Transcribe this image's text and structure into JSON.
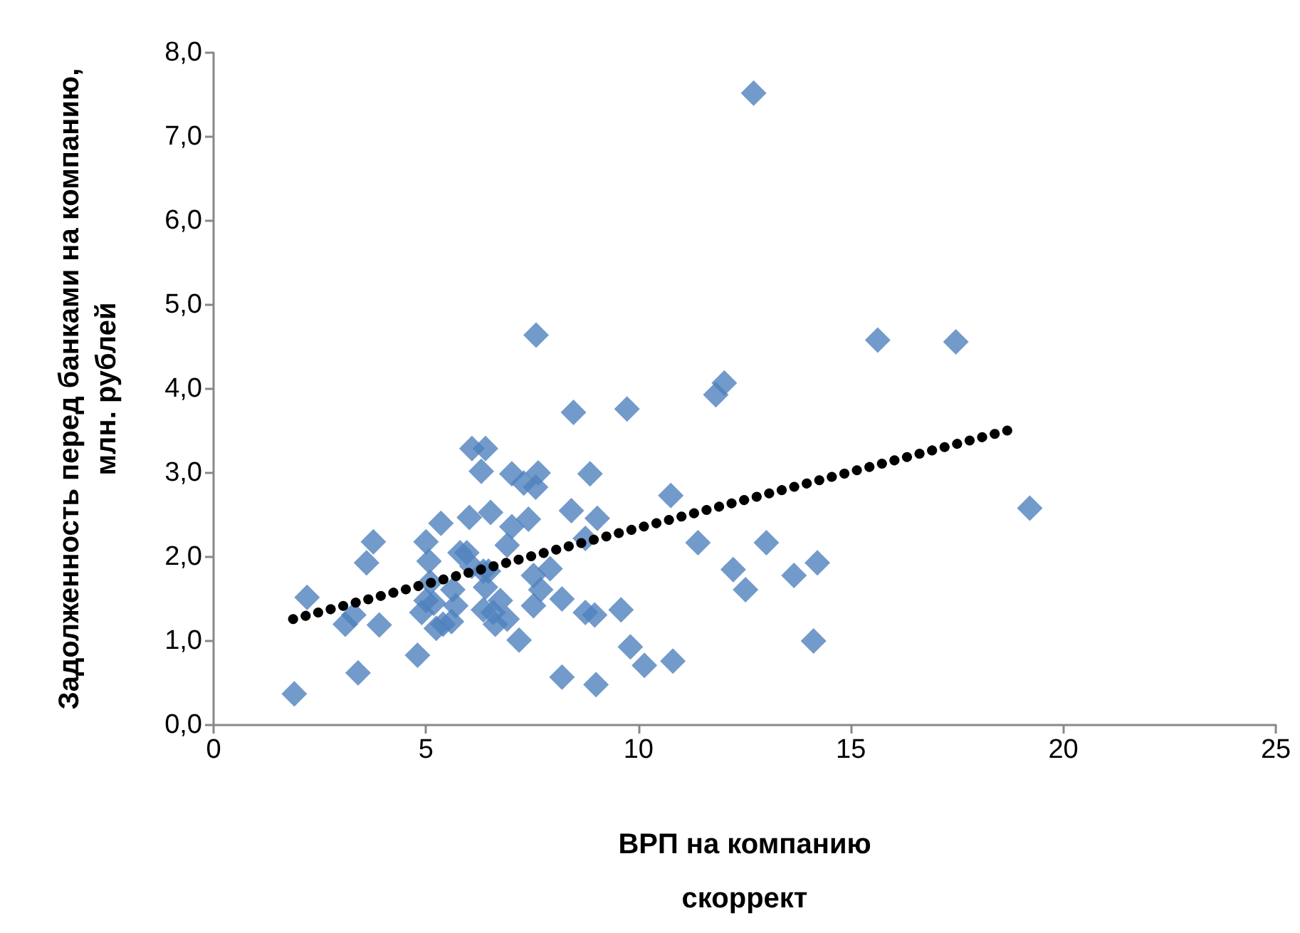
{
  "chart_data": {
    "type": "scatter",
    "xlabel": "ВРП на компанию скоррект",
    "ylabel": "Задолженность перед банками на компанию, млн. рублей",
    "marker": "diamond",
    "grid": false,
    "xlim": [
      0,
      25
    ],
    "xticks": [
      0,
      5,
      10,
      15,
      20,
      25
    ],
    "ylim": [
      0,
      8
    ],
    "yticks": [
      {
        "value": 0,
        "label": "0,0"
      },
      {
        "value": 1,
        "label": "1,0"
      },
      {
        "value": 2,
        "label": "2,0"
      },
      {
        "value": 3,
        "label": "3,0"
      },
      {
        "value": 4,
        "label": "4,0"
      },
      {
        "value": 5,
        "label": "5,0"
      },
      {
        "value": 6,
        "label": "6,0"
      },
      {
        "value": 7,
        "label": "7,0"
      },
      {
        "value": 8,
        "label": "8,0"
      }
    ],
    "series": [
      {
        "color": "#4f81bd",
        "x": [
          1.9,
          2.2,
          3.1,
          3.3,
          3.9,
          3.4,
          3.6,
          3.76,
          4.8,
          5.0,
          5.07,
          5.35,
          6.08,
          6.4,
          6.3,
          6.02,
          6.52,
          5.0,
          4.9,
          5.24,
          5.63,
          5.7,
          5.96,
          6.35,
          6.4,
          6.58,
          5.6,
          5.1,
          8.47,
          9.73,
          7.02,
          7.3,
          7.64,
          7.58,
          8.86,
          10.76,
          7.41,
          7.02,
          8.42,
          9.03,
          8.75,
          6.91,
          5.8,
          6.08,
          6.47,
          7.92,
          7.53,
          7.7,
          8.2,
          7.53,
          5.18,
          5.4,
          6.35,
          6.63,
          6.91,
          6.75,
          8.75,
          8.97,
          9.59,
          7.19,
          9.81,
          10.14,
          10.81,
          8.2,
          9.0,
          12.71,
          15.63,
          17.47,
          12.02,
          7.59,
          11.82,
          19.21,
          11.4,
          13.01,
          12.23,
          12.52,
          13.66,
          14.21,
          14.12
        ],
        "values": [
          0.37,
          1.52,
          1.2,
          1.31,
          1.19,
          0.62,
          1.93,
          2.18,
          0.83,
          2.18,
          1.95,
          2.4,
          3.29,
          3.29,
          3.02,
          2.47,
          2.53,
          1.48,
          1.34,
          1.15,
          1.61,
          1.42,
          2.05,
          1.83,
          1.64,
          1.34,
          1.23,
          1.7,
          3.72,
          3.76,
          2.99,
          2.88,
          3.0,
          2.83,
          2.99,
          2.73,
          2.45,
          2.36,
          2.55,
          2.46,
          2.22,
          2.14,
          2.05,
          1.89,
          1.83,
          1.86,
          1.78,
          1.61,
          1.5,
          1.42,
          1.45,
          1.2,
          1.37,
          1.2,
          1.26,
          1.48,
          1.34,
          1.31,
          1.37,
          1.01,
          0.93,
          0.71,
          0.76,
          0.57,
          0.48,
          7.52,
          4.58,
          4.56,
          4.07,
          4.64,
          3.93,
          2.58,
          2.17,
          2.17,
          1.85,
          1.61,
          1.78,
          1.93,
          1.0
        ]
      },
      {
        "type": "line",
        "color": "#000000",
        "line_style": "dotted",
        "marker": "none",
        "x": [
          1.87,
          18.8
        ],
        "values": [
          1.26,
          3.52
        ]
      }
    ]
  }
}
